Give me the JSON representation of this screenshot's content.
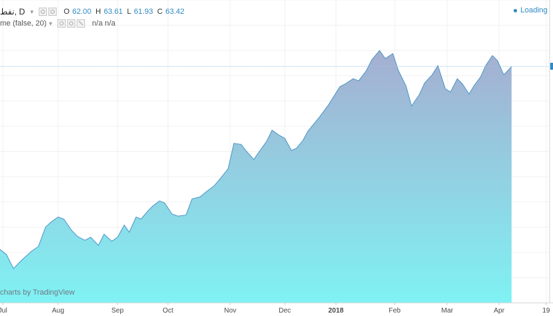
{
  "header": {
    "symbol_title": "نفط, D",
    "ohlc": [
      {
        "label": "O",
        "value": "62.00"
      },
      {
        "label": "H",
        "value": "63.61"
      },
      {
        "label": "L",
        "value": "61.93"
      },
      {
        "label": "C",
        "value": "63.42"
      }
    ],
    "indicator_text": "me (false, 20)",
    "indicator_values": "n/a n/a"
  },
  "loading_label": "Loading",
  "watermark": "charts by TradingView",
  "colors": {
    "line": "#4b96c6",
    "fill_top": "#a5aed0",
    "fill_bottom": "#7ff2f4",
    "price_line": "#9ac3e6",
    "grid": "#f1f1f1",
    "axis_text": "#4a4a4a"
  },
  "chart_data": {
    "type": "area",
    "title": "",
    "xlabel": "",
    "ylabel": "",
    "x_tick_labels": [
      "Jul",
      "Aug",
      "Sep",
      "Oct",
      "Nov",
      "Dec",
      "2018",
      "Feb",
      "Mar",
      "Apr",
      "19"
    ],
    "ylim": [
      40,
      70
    ],
    "last_price": 63.42,
    "grid": true,
    "series": [
      {
        "x": [
          "2017-06-28",
          "2017-07-03",
          "2017-07-07",
          "2017-07-12",
          "2017-07-17",
          "2017-07-21",
          "2017-07-25",
          "2017-07-28",
          "2017-08-01",
          "2017-08-04",
          "2017-08-08",
          "2017-08-11",
          "2017-08-15",
          "2017-08-18",
          "2017-08-22",
          "2017-08-25",
          "2017-08-29",
          "2017-09-01",
          "2017-09-05",
          "2017-09-08",
          "2017-09-12",
          "2017-09-15",
          "2017-09-19",
          "2017-09-22",
          "2017-09-26",
          "2017-09-29",
          "2017-10-03",
          "2017-10-06",
          "2017-10-10",
          "2017-10-13",
          "2017-10-17",
          "2017-10-20",
          "2017-10-24",
          "2017-10-27",
          "2017-10-31",
          "2017-11-03",
          "2017-11-07",
          "2017-11-10",
          "2017-11-14",
          "2017-11-17",
          "2017-11-21",
          "2017-11-24",
          "2017-11-28",
          "2017-12-01",
          "2017-12-05",
          "2017-12-08",
          "2017-12-12",
          "2017-12-15",
          "2017-12-19",
          "2017-12-22",
          "2017-12-27",
          "2017-12-29",
          "2018-01-03",
          "2018-01-06",
          "2018-01-10",
          "2018-01-13",
          "2018-01-17",
          "2018-01-20",
          "2018-01-24",
          "2018-01-27",
          "2018-01-31",
          "2018-02-03",
          "2018-02-07",
          "2018-02-10",
          "2018-02-14",
          "2018-02-17",
          "2018-02-21",
          "2018-02-24",
          "2018-02-28",
          "2018-03-03",
          "2018-03-07",
          "2018-03-10",
          "2018-03-14",
          "2018-03-17",
          "2018-03-21",
          "2018-03-24",
          "2018-03-28",
          "2018-03-31",
          "2018-04-04",
          "2018-04-09"
        ],
        "values": [
          45.5,
          44.8,
          43.4,
          44.3,
          45.1,
          45.6,
          47.5,
          48.0,
          48.5,
          48.3,
          47.2,
          46.6,
          46.2,
          46.5,
          45.7,
          46.8,
          46.1,
          46.5,
          47.7,
          47.0,
          48.5,
          48.3,
          49.1,
          49.6,
          50.1,
          49.9,
          48.8,
          48.6,
          48.7,
          50.3,
          50.5,
          51.0,
          51.6,
          52.3,
          53.3,
          55.8,
          55.7,
          55.0,
          54.2,
          55.0,
          56.0,
          57.1,
          56.6,
          56.3,
          55.1,
          55.3,
          56.1,
          57.0,
          57.8,
          58.4,
          59.5,
          60.0,
          61.4,
          61.7,
          62.2,
          62.0,
          63.0,
          64.1,
          65.0,
          64.2,
          64.7,
          63.0,
          61.5,
          59.5,
          60.6,
          61.8,
          62.6,
          63.5,
          61.2,
          60.9,
          62.2,
          61.7,
          60.7,
          61.5,
          62.4,
          63.5,
          64.5,
          64.0,
          62.6,
          63.4
        ]
      }
    ]
  }
}
